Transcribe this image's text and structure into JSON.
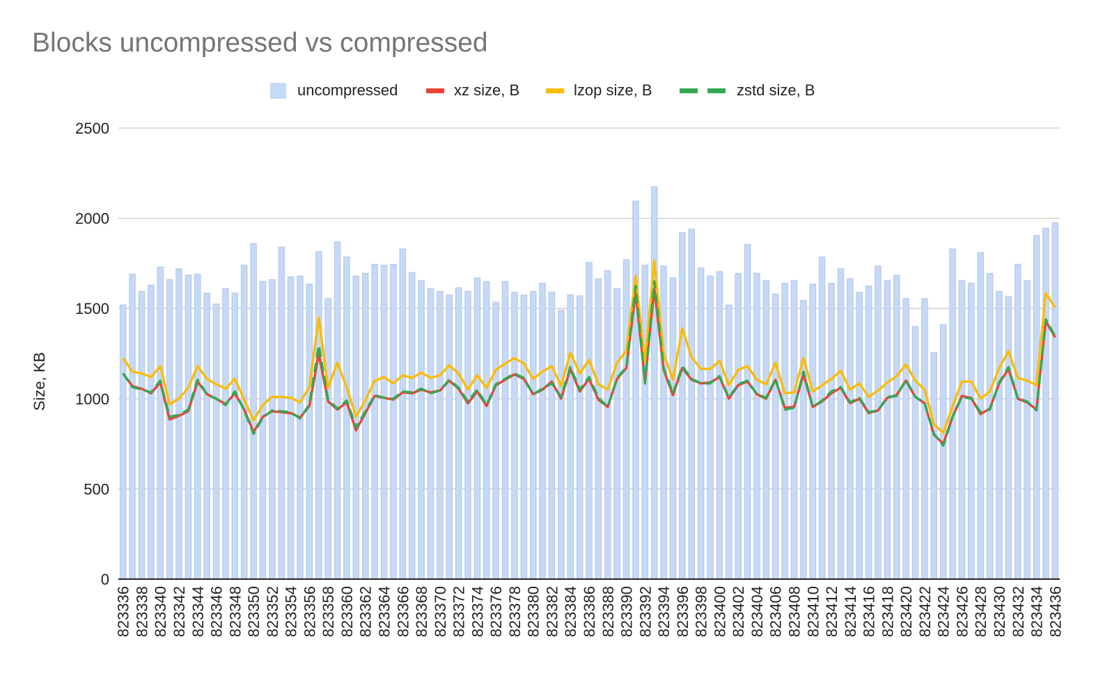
{
  "chart_data": {
    "type": "bar",
    "title": "Blocks uncompressed vs compressed",
    "xlabel": "",
    "ylabel": "Size, KB",
    "ylim": [
      0,
      2500
    ],
    "yticks": [
      0,
      500,
      1000,
      1500,
      2000,
      2500
    ],
    "grid": true,
    "legend_position": "top-center",
    "categories": [
      "823336",
      "823337",
      "823338",
      "823339",
      "823340",
      "823341",
      "823342",
      "823343",
      "823344",
      "823345",
      "823346",
      "823347",
      "823348",
      "823349",
      "823350",
      "823351",
      "823352",
      "823353",
      "823354",
      "823355",
      "823356",
      "823357",
      "823358",
      "823359",
      "823360",
      "823361",
      "823362",
      "823363",
      "823364",
      "823365",
      "823366",
      "823367",
      "823368",
      "823369",
      "823370",
      "823371",
      "823372",
      "823373",
      "823374",
      "823375",
      "823376",
      "823377",
      "823378",
      "823379",
      "823380",
      "823381",
      "823382",
      "823383",
      "823384",
      "823385",
      "823386",
      "823387",
      "823388",
      "823389",
      "823390",
      "823391",
      "823392",
      "823393",
      "823394",
      "823395",
      "823396",
      "823397",
      "823398",
      "823399",
      "823400",
      "823401",
      "823402",
      "823403",
      "823404",
      "823405",
      "823406",
      "823407",
      "823408",
      "823409",
      "823410",
      "823411",
      "823412",
      "823413",
      "823414",
      "823415",
      "823416",
      "823417",
      "823418",
      "823419",
      "823420",
      "823421",
      "823422",
      "823423",
      "823424",
      "823425",
      "823426",
      "823427",
      "823428",
      "823429",
      "823430",
      "823431",
      "823432",
      "823433",
      "823434",
      "823435",
      "823436"
    ],
    "tick_labels": [
      "823336",
      "823338",
      "823340",
      "823342",
      "823344",
      "823346",
      "823348",
      "823350",
      "823352",
      "823354",
      "823356",
      "823358",
      "823360",
      "823362",
      "823364",
      "823366",
      "823368",
      "823370",
      "823372",
      "823374",
      "823376",
      "823378",
      "823380",
      "823382",
      "823384",
      "823386",
      "823388",
      "823390",
      "823392",
      "823394",
      "823396",
      "823398",
      "823400",
      "823402",
      "823404",
      "823406",
      "823408",
      "823410",
      "823412",
      "823414",
      "823416",
      "823418",
      "823420",
      "823422",
      "823424",
      "823426",
      "823428",
      "823430",
      "823432",
      "823434",
      "823436"
    ],
    "series": [
      {
        "name": "uncompressed",
        "kind": "bar",
        "color": "#c6d9f7",
        "values": [
          1520,
          1690,
          1595,
          1630,
          1730,
          1660,
          1720,
          1685,
          1690,
          1585,
          1525,
          1610,
          1585,
          1740,
          1860,
          1650,
          1660,
          1840,
          1675,
          1680,
          1635,
          1815,
          1555,
          1870,
          1785,
          1680,
          1695,
          1745,
          1740,
          1745,
          1830,
          1700,
          1655,
          1610,
          1595,
          1575,
          1615,
          1595,
          1670,
          1650,
          1535,
          1650,
          1590,
          1575,
          1595,
          1640,
          1590,
          1490,
          1575,
          1570,
          1755,
          1665,
          1710,
          1610,
          1770,
          2095,
          1740,
          2175,
          1735,
          1670,
          1920,
          1940,
          1725,
          1680,
          1705,
          1520,
          1695,
          1855,
          1695,
          1655,
          1580,
          1640,
          1655,
          1545,
          1635,
          1785,
          1640,
          1720,
          1665,
          1590,
          1625,
          1735,
          1655,
          1685,
          1555,
          1400,
          1555,
          1255,
          1410,
          1830,
          1655,
          1640,
          1810,
          1695,
          1595,
          1565,
          1745,
          1655,
          1905,
          1945,
          1975
        ]
      },
      {
        "name": "xz size, B",
        "kind": "line",
        "color": "#ea4335",
        "values": [
          1140,
          1070,
          1055,
          1030,
          1090,
          885,
          905,
          930,
          1095,
          1025,
          1000,
          970,
          1030,
          940,
          815,
          900,
          930,
          925,
          920,
          895,
          960,
          1250,
          985,
          940,
          980,
          825,
          920,
          1015,
          1005,
          995,
          1035,
          1030,
          1050,
          1035,
          1045,
          1100,
          1055,
          975,
          1040,
          960,
          1075,
          1105,
          1135,
          1110,
          1025,
          1050,
          1095,
          1000,
          1165,
          1040,
          1110,
          995,
          955,
          1110,
          1170,
          1590,
          1095,
          1610,
          1160,
          1020,
          1170,
          1105,
          1085,
          1090,
          1120,
          1000,
          1075,
          1095,
          1025,
          1000,
          1105,
          950,
          955,
          1135,
          955,
          985,
          1030,
          1060,
          975,
          1000,
          920,
          935,
          1005,
          1020,
          1100,
          1010,
          975,
          800,
          750,
          900,
          1015,
          1005,
          915,
          945,
          1085,
          1165,
          1000,
          980,
          940,
          1430,
          1340
        ]
      },
      {
        "name": "lzop size, B",
        "kind": "line",
        "color": "#fbbc04",
        "values": [
          1225,
          1150,
          1140,
          1120,
          1180,
          970,
          1000,
          1060,
          1180,
          1110,
          1080,
          1055,
          1110,
          995,
          880,
          965,
          1010,
          1010,
          1005,
          980,
          1065,
          1450,
          1060,
          1200,
          1060,
          900,
          990,
          1100,
          1120,
          1085,
          1130,
          1115,
          1145,
          1115,
          1130,
          1185,
          1140,
          1050,
          1130,
          1060,
          1160,
          1195,
          1225,
          1195,
          1110,
          1150,
          1180,
          1070,
          1255,
          1140,
          1215,
          1080,
          1050,
          1200,
          1265,
          1680,
          1205,
          1765,
          1250,
          1105,
          1390,
          1230,
          1165,
          1165,
          1210,
          1075,
          1160,
          1180,
          1105,
          1080,
          1200,
          1030,
          1035,
          1225,
          1040,
          1075,
          1110,
          1155,
          1050,
          1085,
          1010,
          1045,
          1090,
          1125,
          1190,
          1100,
          1050,
          860,
          810,
          960,
          1095,
          1095,
          1000,
          1040,
          1170,
          1265,
          1115,
          1100,
          1075,
          1585,
          1505
        ]
      },
      {
        "name": "zstd size, B",
        "kind": "line",
        "dashed": true,
        "color": "#34a853",
        "values": [
          1140,
          1065,
          1050,
          1035,
          1100,
          900,
          910,
          940,
          1105,
          1025,
          1000,
          965,
          1040,
          935,
          805,
          895,
          935,
          930,
          925,
          890,
          970,
          1295,
          995,
          945,
          990,
          840,
          930,
          1020,
          1005,
          1000,
          1040,
          1035,
          1055,
          1030,
          1045,
          1105,
          1060,
          985,
          1050,
          965,
          1080,
          1110,
          1140,
          1115,
          1025,
          1055,
          1085,
          1010,
          1175,
          1050,
          1120,
          1005,
          955,
          1115,
          1175,
          1625,
          1085,
          1650,
          1170,
          1030,
          1180,
          1110,
          1085,
          1085,
          1125,
          1005,
          1080,
          1100,
          1025,
          1005,
          1110,
          940,
          950,
          1150,
          955,
          990,
          1040,
          1065,
          980,
          1005,
          925,
          935,
          1010,
          1015,
          1105,
          1010,
          975,
          805,
          740,
          900,
          1010,
          1000,
          925,
          940,
          1090,
          1175,
          1000,
          985,
          935,
          1440,
          1345
        ]
      }
    ]
  }
}
